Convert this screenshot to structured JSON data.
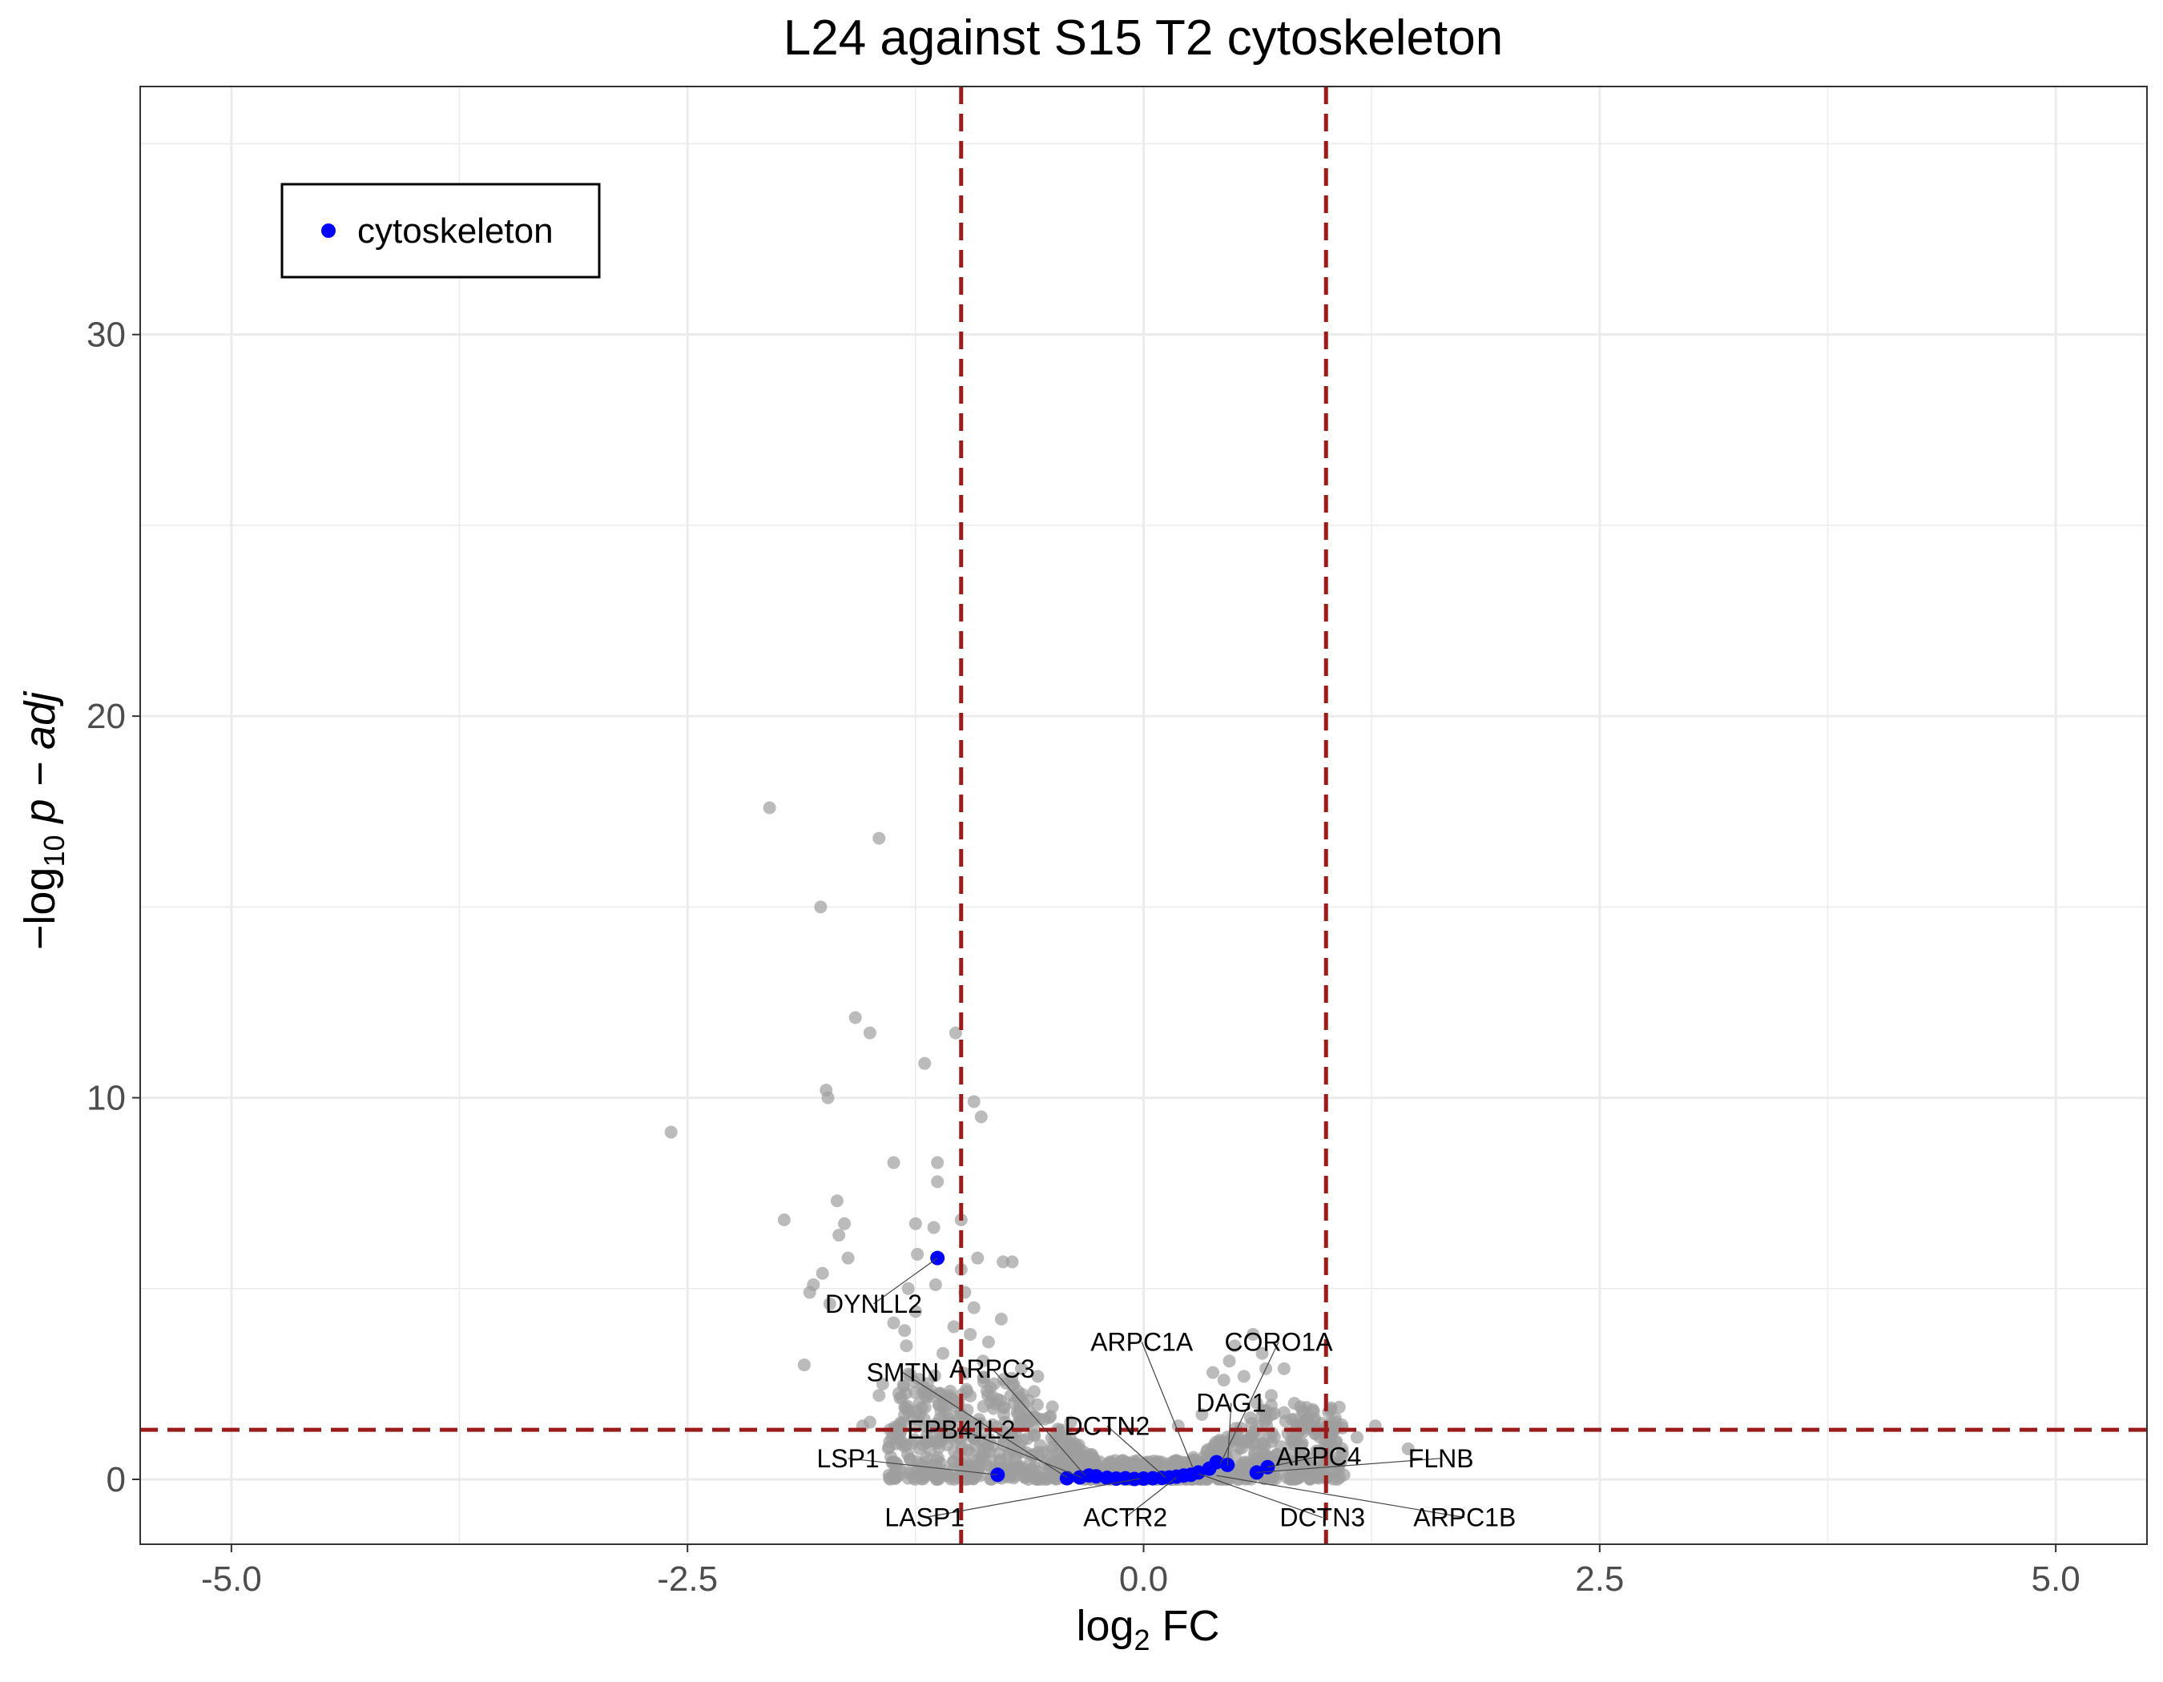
{
  "chart_data": {
    "type": "scatter",
    "title": "L24 against S15 T2 cytoskeleton",
    "xlabel": {
      "main": "log",
      "sub": "2",
      "rest": " FC"
    },
    "ylabel": {
      "prefix": "−log",
      "sub": "10",
      "italic": " p − adj"
    },
    "xlim": [
      -5.5,
      5.5
    ],
    "ylim": [
      -1.7,
      36.5
    ],
    "x_ticks": [
      {
        "value": -5,
        "label": "-5.0"
      },
      {
        "value": -2.5,
        "label": "-2.5"
      },
      {
        "value": 0,
        "label": "0.0"
      },
      {
        "value": 2.5,
        "label": "2.5"
      },
      {
        "value": 5,
        "label": "5.0"
      }
    ],
    "y_ticks": [
      {
        "value": 0,
        "label": "0"
      },
      {
        "value": 10,
        "label": "10"
      },
      {
        "value": 20,
        "label": "20"
      },
      {
        "value": 30,
        "label": "30"
      }
    ],
    "grid": true,
    "thresholds": {
      "fc": [
        -1,
        1
      ],
      "padj_neglog10": 1.3
    },
    "colors": {
      "background_points": "#9e9e9e",
      "highlight": "#0000ff",
      "threshold": "#9b1b1b",
      "grid": "#ebebeb"
    },
    "legend": {
      "position": "top-left",
      "entries": [
        {
          "name": "cytoskeleton",
          "color": "#0000ff"
        }
      ]
    },
    "background_points": [
      {
        "x": -2.05,
        "y": 17.6
      },
      {
        "x": -1.45,
        "y": 16.8
      },
      {
        "x": -1.77,
        "y": 15.0
      },
      {
        "x": -1.58,
        "y": 12.1
      },
      {
        "x": -1.5,
        "y": 11.7
      },
      {
        "x": -1.03,
        "y": 11.7
      },
      {
        "x": -1.2,
        "y": 10.9
      },
      {
        "x": -1.74,
        "y": 10.2
      },
      {
        "x": -1.73,
        "y": 10.0
      },
      {
        "x": -0.93,
        "y": 9.9
      },
      {
        "x": -0.89,
        "y": 9.5
      },
      {
        "x": -2.59,
        "y": 9.1
      },
      {
        "x": -1.37,
        "y": 8.3
      },
      {
        "x": -1.13,
        "y": 8.3
      },
      {
        "x": -1.13,
        "y": 7.8
      },
      {
        "x": -1.68,
        "y": 7.3
      },
      {
        "x": -1.97,
        "y": 6.8
      },
      {
        "x": -1.64,
        "y": 6.7
      },
      {
        "x": -1.25,
        "y": 6.7
      },
      {
        "x": -1.0,
        "y": 6.8
      },
      {
        "x": -1.15,
        "y": 6.6
      },
      {
        "x": -1.67,
        "y": 6.4
      },
      {
        "x": -1.24,
        "y": 5.9
      },
      {
        "x": -1.62,
        "y": 5.8
      },
      {
        "x": -0.91,
        "y": 5.8
      },
      {
        "x": -0.77,
        "y": 5.7
      },
      {
        "x": -0.72,
        "y": 5.7
      },
      {
        "x": -1.0,
        "y": 5.5
      },
      {
        "x": -1.76,
        "y": 5.4
      },
      {
        "x": -1.81,
        "y": 5.1
      },
      {
        "x": -1.83,
        "y": 4.9
      },
      {
        "x": -1.29,
        "y": 5.0
      },
      {
        "x": -1.14,
        "y": 5.1
      },
      {
        "x": -1.72,
        "y": 4.6
      },
      {
        "x": -0.98,
        "y": 4.9
      },
      {
        "x": -0.93,
        "y": 4.5
      },
      {
        "x": -1.25,
        "y": 4.4
      },
      {
        "x": -1.37,
        "y": 4.1
      },
      {
        "x": -0.78,
        "y": 4.2
      },
      {
        "x": -1.04,
        "y": 4.0
      },
      {
        "x": -1.31,
        "y": 3.9
      },
      {
        "x": -0.95,
        "y": 3.8
      },
      {
        "x": -1.3,
        "y": 3.5
      },
      {
        "x": -1.86,
        "y": 3.0
      },
      {
        "x": -1.1,
        "y": 3.3
      },
      {
        "x": -0.88,
        "y": 3.1
      },
      {
        "x": -0.67,
        "y": 2.9
      },
      {
        "x": -1.43,
        "y": 2.5
      },
      {
        "x": -1.2,
        "y": 2.3
      },
      {
        "x": -1.45,
        "y": 2.2
      },
      {
        "x": -0.82,
        "y": 2.5
      },
      {
        "x": -1.5,
        "y": 1.5
      },
      {
        "x": -1.39,
        "y": 1.3
      },
      {
        "x": 0.6,
        "y": 3.8
      },
      {
        "x": 0.5,
        "y": 3.5
      },
      {
        "x": 0.65,
        "y": 3.3
      },
      {
        "x": 0.47,
        "y": 3.1
      },
      {
        "x": 0.67,
        "y": 2.9
      },
      {
        "x": 0.77,
        "y": 2.9
      },
      {
        "x": 0.55,
        "y": 2.7
      },
      {
        "x": 0.44,
        "y": 2.6
      },
      {
        "x": 0.38,
        "y": 2.8
      },
      {
        "x": 0.7,
        "y": 2.2
      },
      {
        "x": 0.62,
        "y": 2.0
      },
      {
        "x": 0.86,
        "y": 1.9
      },
      {
        "x": 0.7,
        "y": 1.7
      },
      {
        "x": 1.27,
        "y": 1.4
      },
      {
        "x": 0.94,
        "y": 1.2
      },
      {
        "x": 1.17,
        "y": 1.1
      },
      {
        "x": 1.45,
        "y": 0.8
      },
      {
        "x": 1.09,
        "y": 0.7
      },
      {
        "x": 0.19,
        "y": 1.4
      },
      {
        "x": 0.32,
        "y": 1.7
      },
      {
        "x": 1.0,
        "y": 0.9
      },
      {
        "x": -0.85,
        "y": 3.6
      },
      {
        "x": -0.58,
        "y": 2.7
      },
      {
        "x": -0.6,
        "y": 2.3
      },
      {
        "x": -0.5,
        "y": 1.9
      },
      {
        "x": -0.4,
        "y": 1.5
      },
      {
        "x": -1.24,
        "y": 0.2
      },
      {
        "x": -1.0,
        "y": 0.3
      },
      {
        "x": -1.54,
        "y": 1.4
      },
      {
        "x": -1.3,
        "y": 0.9
      },
      {
        "x": -0.9,
        "y": 0.4
      }
    ],
    "cloud": {
      "count": 1100,
      "left": {
        "x_min": -1.4,
        "x_max": -0.25,
        "y_max": 2.8
      },
      "center": {
        "x_min": -0.25,
        "x_max": 0.25,
        "y_max": 0.5
      },
      "right": {
        "x_min": 0.25,
        "x_max": 1.1,
        "y_max": 2.0
      }
    },
    "highlight_points": [
      {
        "x": -1.13,
        "y": 5.8
      },
      {
        "x": -0.8,
        "y": 0.12
      },
      {
        "x": -0.42,
        "y": 0.03
      },
      {
        "x": -0.35,
        "y": 0.05
      },
      {
        "x": -0.3,
        "y": 0.1
      },
      {
        "x": -0.26,
        "y": 0.08
      },
      {
        "x": -0.2,
        "y": 0.04
      },
      {
        "x": -0.15,
        "y": 0.02
      },
      {
        "x": -0.1,
        "y": 0.03
      },
      {
        "x": -0.05,
        "y": 0.01
      },
      {
        "x": 0.0,
        "y": 0.02
      },
      {
        "x": 0.05,
        "y": 0.03
      },
      {
        "x": 0.1,
        "y": 0.04
      },
      {
        "x": 0.14,
        "y": 0.05
      },
      {
        "x": 0.18,
        "y": 0.07
      },
      {
        "x": 0.22,
        "y": 0.1
      },
      {
        "x": 0.26,
        "y": 0.12
      },
      {
        "x": 0.3,
        "y": 0.18
      },
      {
        "x": 0.36,
        "y": 0.28
      },
      {
        "x": 0.4,
        "y": 0.45
      },
      {
        "x": 0.46,
        "y": 0.38
      },
      {
        "x": 0.62,
        "y": 0.18
      },
      {
        "x": 0.68,
        "y": 0.32
      }
    ],
    "labels": [
      {
        "text": "DYNLL2",
        "x": -1.13,
        "y": 5.8,
        "lx": -1.48,
        "ly": 4.6
      },
      {
        "text": "ARPC1A",
        "x": 0.27,
        "y": 0.3,
        "lx": -0.01,
        "ly": 3.6
      },
      {
        "text": "CORO1A",
        "x": 0.42,
        "y": 0.4,
        "lx": 0.74,
        "ly": 3.6
      },
      {
        "text": "SMTN",
        "x": -0.42,
        "y": 0.05,
        "lx": -1.32,
        "ly": 2.8
      },
      {
        "text": "ARPC3",
        "x": -0.32,
        "y": 0.1,
        "lx": -0.83,
        "ly": 2.9
      },
      {
        "text": "DAG1",
        "x": 0.46,
        "y": 0.35,
        "lx": 0.48,
        "ly": 2.0
      },
      {
        "text": "EPB41L2",
        "x": -0.34,
        "y": 0.05,
        "lx": -1.0,
        "ly": 1.3
      },
      {
        "text": "DCTN2",
        "x": 0.12,
        "y": 0.05,
        "lx": -0.2,
        "ly": 1.4
      },
      {
        "text": "LSP1",
        "x": -0.8,
        "y": 0.12,
        "lx": -1.62,
        "ly": 0.55
      },
      {
        "text": "ARPC4",
        "x": 0.68,
        "y": 0.32,
        "lx": 0.96,
        "ly": 0.6
      },
      {
        "text": "FLNB",
        "x": 0.62,
        "y": 0.18,
        "lx": 1.63,
        "ly": 0.55
      },
      {
        "text": "LASP1",
        "x": -0.02,
        "y": 0.02,
        "lx": -1.2,
        "ly": -1.0
      },
      {
        "text": "ACTR2",
        "x": 0.18,
        "y": 0.05,
        "lx": -0.1,
        "ly": -1.0
      },
      {
        "text": "DCTN3",
        "x": 0.3,
        "y": 0.15,
        "lx": 0.98,
        "ly": -1.0
      },
      {
        "text": "ARPC1B",
        "x": 0.4,
        "y": 0.1,
        "lx": 1.76,
        "ly": -1.0
      }
    ]
  }
}
